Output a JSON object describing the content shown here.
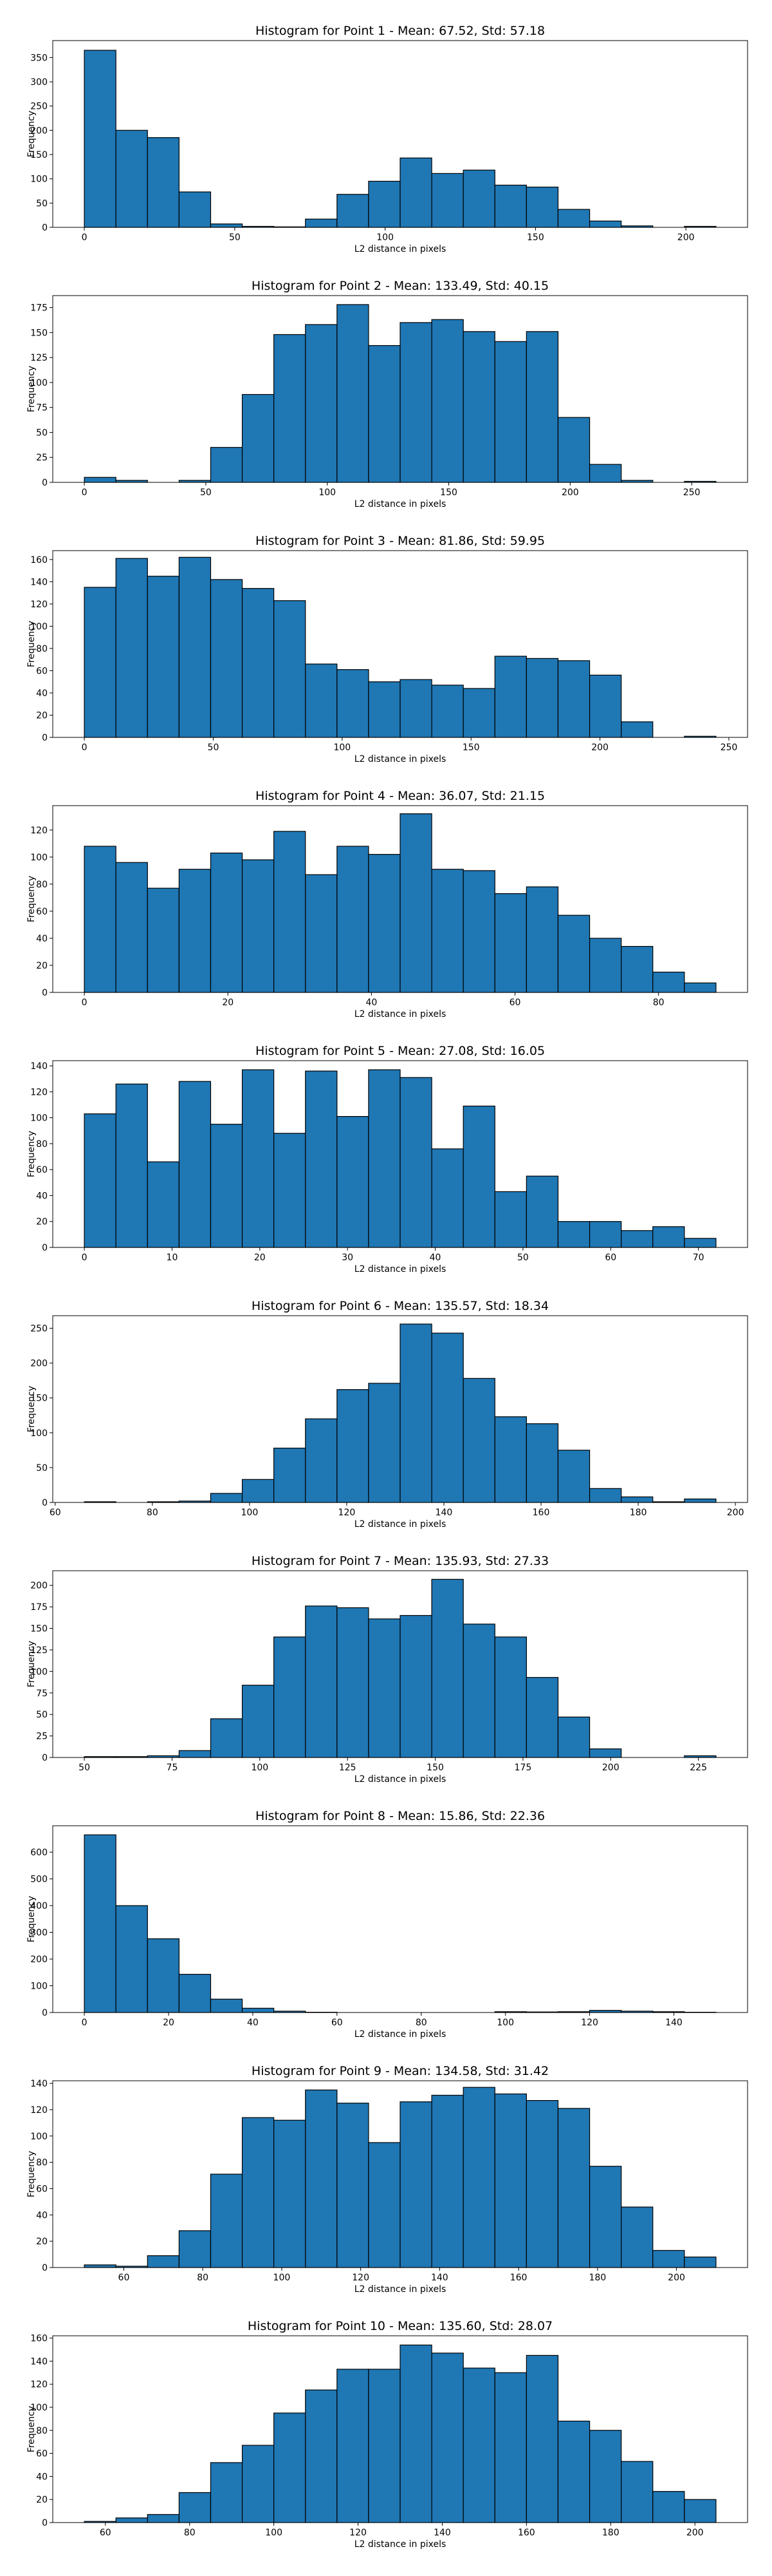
{
  "figure": {
    "background": "#ffffff",
    "bar_color": "#1f77b4",
    "edge_color": "#000000"
  },
  "chart_data": [
    {
      "type": "bar",
      "title": "Histogram for Point 1 - Mean: 67.52, Std: 57.18",
      "xlabel": "L2 distance in pixels",
      "ylabel": "Frequency",
      "bin_edges": [
        0,
        10.5,
        21,
        31.5,
        42,
        52.5,
        63,
        73.5,
        84,
        94.5,
        105,
        115.5,
        126,
        136.5,
        147,
        157.5,
        168,
        178.5,
        189,
        199.5,
        210
      ],
      "values": [
        365,
        200,
        185,
        73,
        7,
        2,
        1,
        17,
        68,
        95,
        143,
        111,
        118,
        87,
        83,
        37,
        13,
        3,
        0,
        2
      ],
      "xlim": [
        -10.5,
        220.5
      ],
      "ylim": [
        0,
        385
      ],
      "xticks": [
        0,
        50,
        100,
        150,
        200
      ],
      "yticks": [
        0,
        50,
        100,
        150,
        200,
        250,
        300,
        350
      ]
    },
    {
      "type": "bar",
      "title": "Histogram for Point 2 - Mean: 133.49, Std: 40.15",
      "xlabel": "L2 distance in pixels",
      "ylabel": "Frequency",
      "bin_edges": [
        0,
        13,
        26,
        39,
        52,
        65,
        78,
        91,
        104,
        117,
        130,
        143,
        156,
        169,
        182,
        195,
        208,
        221,
        234,
        247,
        260
      ],
      "values": [
        5,
        2,
        0,
        2,
        35,
        88,
        148,
        158,
        178,
        137,
        160,
        163,
        151,
        141,
        151,
        65,
        18,
        2,
        0,
        1
      ],
      "xlim": [
        -13,
        273
      ],
      "ylim": [
        0,
        187
      ],
      "xticks": [
        0,
        50,
        100,
        150,
        200,
        250
      ],
      "yticks": [
        0,
        25,
        50,
        75,
        100,
        125,
        150,
        175
      ]
    },
    {
      "type": "bar",
      "title": "Histogram for Point 3 - Mean: 81.86, Std: 59.95",
      "xlabel": "L2 distance in pixels",
      "ylabel": "Frequency",
      "bin_edges": [
        0,
        12.25,
        24.5,
        36.75,
        49,
        61.25,
        73.5,
        85.75,
        98,
        110.25,
        122.5,
        134.75,
        147,
        159.25,
        171.5,
        183.75,
        196,
        208.25,
        220.5,
        232.75,
        245
      ],
      "values": [
        135,
        161,
        145,
        162,
        142,
        134,
        123,
        66,
        61,
        50,
        52,
        47,
        44,
        73,
        71,
        69,
        56,
        14,
        0,
        1
      ],
      "xlim": [
        -12.25,
        257.25
      ],
      "ylim": [
        0,
        168
      ],
      "xticks": [
        0,
        50,
        100,
        150,
        200,
        250
      ],
      "yticks": [
        0,
        20,
        40,
        60,
        80,
        100,
        120,
        140,
        160
      ]
    },
    {
      "type": "bar",
      "title": "Histogram for Point 4 - Mean: 36.07, Std: 21.15",
      "xlabel": "L2 distance in pixels",
      "ylabel": "Frequency",
      "bin_edges": [
        0,
        4.4,
        8.8,
        13.2,
        17.6,
        22,
        26.4,
        30.8,
        35.2,
        39.6,
        44,
        48.4,
        52.8,
        57.2,
        61.6,
        66,
        70.4,
        74.8,
        79.2,
        83.6,
        88
      ],
      "values": [
        108,
        96,
        77,
        91,
        103,
        98,
        119,
        87,
        108,
        102,
        132,
        91,
        90,
        73,
        78,
        57,
        40,
        34,
        15,
        7
      ],
      "xlim": [
        -4.4,
        92.4
      ],
      "ylim": [
        0,
        138
      ],
      "xticks": [
        0,
        20,
        40,
        60,
        80
      ],
      "yticks": [
        0,
        20,
        40,
        60,
        80,
        100,
        120
      ]
    },
    {
      "type": "bar",
      "title": "Histogram for Point 5 - Mean: 27.08, Std: 16.05",
      "xlabel": "L2 distance in pixels",
      "ylabel": "Frequency",
      "bin_edges": [
        0,
        3.6,
        7.2,
        10.8,
        14.4,
        18,
        21.6,
        25.2,
        28.8,
        32.4,
        36,
        39.6,
        43.2,
        46.8,
        50.4,
        54,
        57.6,
        61.2,
        64.8,
        68.4,
        72
      ],
      "values": [
        103,
        126,
        66,
        128,
        95,
        137,
        88,
        136,
        101,
        137,
        131,
        76,
        109,
        43,
        55,
        20,
        20,
        13,
        16,
        7
      ],
      "xlim": [
        -3.6,
        75.6
      ],
      "ylim": [
        0,
        144
      ],
      "xticks": [
        0,
        10,
        20,
        30,
        40,
        50,
        60,
        70
      ],
      "yticks": [
        0,
        20,
        40,
        60,
        80,
        100,
        120,
        140
      ]
    },
    {
      "type": "bar",
      "title": "Histogram for Point 6 - Mean: 135.57, Std: 18.34",
      "xlabel": "L2 distance in pixels",
      "ylabel": "Frequency",
      "bin_edges": [
        66,
        72.5,
        79,
        85.5,
        92,
        98.5,
        105,
        111.5,
        118,
        124.5,
        131,
        137.5,
        144,
        150.5,
        157,
        163.5,
        170,
        176.5,
        183,
        189.5,
        196
      ],
      "values": [
        1,
        0,
        1,
        2,
        13,
        33,
        78,
        120,
        162,
        171,
        256,
        243,
        178,
        123,
        113,
        75,
        20,
        8,
        1,
        5
      ],
      "xlim": [
        59.5,
        202.5
      ],
      "ylim": [
        0,
        268
      ],
      "xticks": [
        60,
        80,
        100,
        120,
        140,
        160,
        180,
        200
      ],
      "yticks": [
        0,
        50,
        100,
        150,
        200,
        250
      ]
    },
    {
      "type": "bar",
      "title": "Histogram for Point 7 - Mean: 135.93, Std: 27.33",
      "xlabel": "L2 distance in pixels",
      "ylabel": "Frequency",
      "bin_edges": [
        50,
        59,
        68,
        77,
        86,
        95,
        104,
        113,
        122,
        131,
        140,
        149,
        158,
        167,
        176,
        185,
        194,
        203,
        212,
        221,
        230
      ],
      "values": [
        1,
        1,
        2,
        8,
        45,
        84,
        140,
        176,
        174,
        161,
        165,
        207,
        155,
        140,
        93,
        47,
        10,
        0,
        0,
        2
      ],
      "xlim": [
        41,
        239
      ],
      "ylim": [
        0,
        217
      ],
      "xticks": [
        50,
        75,
        100,
        125,
        150,
        175,
        200,
        225
      ],
      "yticks": [
        0,
        25,
        50,
        75,
        100,
        125,
        150,
        175,
        200
      ]
    },
    {
      "type": "bar",
      "title": "Histogram for Point 8 - Mean: 15.86, Std: 22.36",
      "xlabel": "L2 distance in pixels",
      "ylabel": "Frequency",
      "bin_edges": [
        0,
        7.5,
        15,
        22.5,
        30,
        37.5,
        45,
        52.5,
        60,
        67.5,
        75,
        82.5,
        90,
        97.5,
        105,
        112.5,
        120,
        127.5,
        135,
        142.5,
        150
      ],
      "values": [
        665,
        400,
        276,
        143,
        50,
        16,
        5,
        1,
        0,
        0,
        0,
        0,
        0,
        3,
        2,
        3,
        8,
        5,
        3,
        1
      ],
      "xlim": [
        -7.5,
        157.5
      ],
      "ylim": [
        0,
        699
      ],
      "xticks": [
        0,
        20,
        40,
        60,
        80,
        100,
        120,
        140
      ],
      "yticks": [
        0,
        100,
        200,
        300,
        400,
        500,
        600
      ]
    },
    {
      "type": "bar",
      "title": "Histogram for Point 9 - Mean: 134.58, Std: 31.42",
      "xlabel": "L2 distance in pixels",
      "ylabel": "Frequency",
      "bin_edges": [
        50,
        58,
        66,
        74,
        82,
        90,
        98,
        106,
        114,
        122,
        130,
        138,
        146,
        154,
        162,
        170,
        178,
        186,
        194,
        202,
        210
      ],
      "values": [
        2,
        1,
        9,
        28,
        71,
        114,
        112,
        135,
        125,
        95,
        126,
        131,
        137,
        132,
        127,
        121,
        77,
        46,
        13,
        8
      ],
      "xlim": [
        42,
        218
      ],
      "ylim": [
        0,
        142
      ],
      "xticks": [
        60,
        80,
        100,
        120,
        140,
        160,
        180,
        200
      ],
      "yticks": [
        0,
        20,
        40,
        60,
        80,
        100,
        120,
        140
      ]
    },
    {
      "type": "bar",
      "title": "Histogram for Point 10 - Mean: 135.60, Std: 28.07",
      "xlabel": "L2 distance in pixels",
      "ylabel": "Frequency",
      "bin_edges": [
        55,
        62.5,
        70,
        77.5,
        85,
        92.5,
        100,
        107.5,
        115,
        122.5,
        130,
        137.5,
        145,
        152.5,
        160,
        167.5,
        175,
        182.5,
        190,
        197.5,
        205
      ],
      "values": [
        1,
        4,
        7,
        26,
        52,
        67,
        95,
        115,
        133,
        133,
        154,
        147,
        134,
        130,
        145,
        88,
        80,
        53,
        27,
        20
      ],
      "xlim": [
        47.5,
        212.5
      ],
      "ylim": [
        0,
        162
      ],
      "xticks": [
        60,
        80,
        100,
        120,
        140,
        160,
        180,
        200
      ],
      "yticks": [
        0,
        20,
        40,
        60,
        80,
        100,
        120,
        140,
        160
      ]
    }
  ]
}
